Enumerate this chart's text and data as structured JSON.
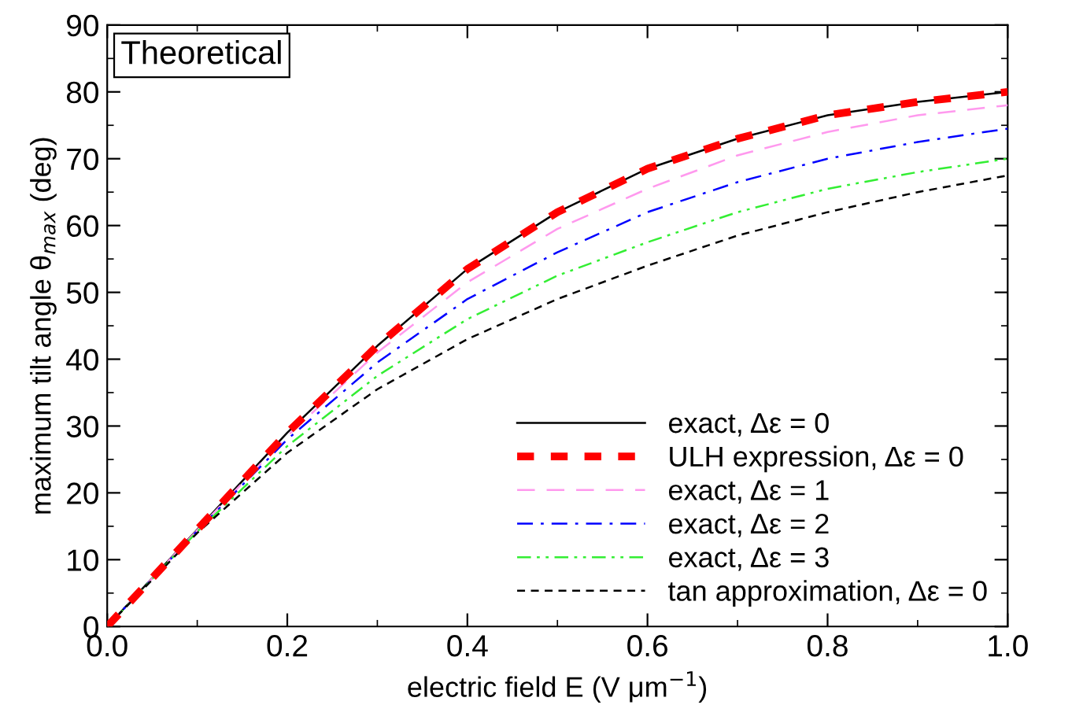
{
  "chart_data": {
    "type": "line",
    "title": "Theoretical",
    "xlabel": "electric field E (V μm$^{−1}$)",
    "ylabel": "maximum tilt angle θ$_{max}$ (deg)",
    "x": [
      0,
      0.1,
      0.2,
      0.3,
      0.4,
      0.5,
      0.6,
      0.7,
      0.8,
      0.9,
      1.0
    ],
    "series": [
      {
        "name": "exact, Δε = 0",
        "color": "#000000",
        "line_style": "solid",
        "values": [
          0,
          14.5,
          29,
          42,
          53.5,
          62,
          68.5,
          73,
          76.5,
          78.5,
          80
        ]
      },
      {
        "name": "ULH expression, Δε = 0",
        "color": "#ff0000",
        "line_style": "dashed",
        "values": [
          0,
          14.5,
          29,
          42,
          53.5,
          62,
          68.5,
          73,
          76.5,
          78.5,
          80
        ]
      },
      {
        "name": "exact, Δε = 1",
        "color": "#ff99ee",
        "line_style": "dashed",
        "values": [
          0,
          14.4,
          28.5,
          41,
          51.5,
          59.5,
          65.5,
          70.5,
          74,
          76.5,
          78
        ]
      },
      {
        "name": "exact, Δε = 2",
        "color": "#0000ff",
        "line_style": "dashdot",
        "values": [
          0,
          14.3,
          28,
          39.5,
          49,
          56,
          62,
          66.5,
          70,
          72.5,
          74.5
        ]
      },
      {
        "name": "exact, Δε = 3",
        "color": "#33ee33",
        "line_style": "dashdotdot",
        "values": [
          0,
          14.2,
          27,
          37.5,
          46,
          52.5,
          57.5,
          62,
          65.5,
          68,
          70
        ]
      },
      {
        "name": "tan approximation, Δε = 0",
        "color": "#000000",
        "line_style": "dashed",
        "values": [
          0,
          14,
          26,
          35.5,
          43,
          49,
          54,
          58.5,
          62,
          65,
          67.5
        ]
      }
    ],
    "xlim": [
      0,
      1.0
    ],
    "xticks": [
      {
        "value": 0,
        "label": "0.0"
      },
      0.2,
      0.4,
      0.6,
      0.8,
      {
        "value": 1.0,
        "label": "1.0"
      }
    ],
    "ylim": [
      0,
      90
    ],
    "yticks": [
      0,
      10,
      20,
      30,
      40,
      50,
      60,
      70,
      80,
      90
    ],
    "grid": false,
    "legend": "bottom right"
  }
}
